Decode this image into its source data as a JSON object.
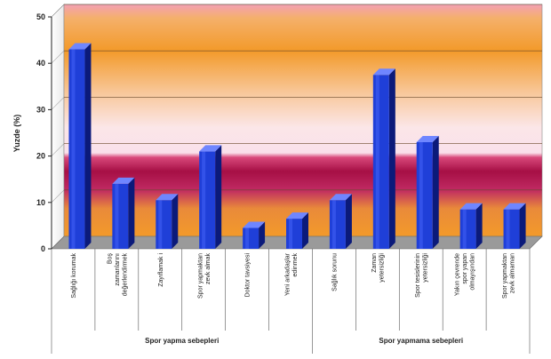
{
  "chart_data": {
    "type": "bar",
    "ylabel": "Yuzde (%)",
    "ylim": [
      0,
      50
    ],
    "yticks": [
      0,
      10,
      20,
      30,
      40,
      50
    ],
    "categories": [
      [
        "Sağlığı korumak"
      ],
      [
        "Boş",
        "zamanlarını",
        "değerlendirmek"
      ],
      [
        "Zayıflamak i"
      ],
      [
        "Spor yapmaktan",
        "zevk almak"
      ],
      [
        "Doktor tavsiyesi"
      ],
      [
        "Yeni arkadaşlar",
        "edinmek"
      ],
      [
        "Sağlık sorunu"
      ],
      [
        "Zaman",
        "yetersizliği"
      ],
      [
        "Spor tesislerinin",
        "yetersizliği"
      ],
      [
        "Yakın çevrende",
        "spor yapan",
        "olmayışından"
      ],
      [
        "Spor yapmaktan",
        "zevk almaman"
      ]
    ],
    "values": [
      43,
      14,
      10.5,
      21,
      4.5,
      6.5,
      10.5,
      37.5,
      23,
      8.5,
      8.5
    ],
    "groups": [
      {
        "label": "Spor yapma sebepleri",
        "from": 0,
        "to": 5
      },
      {
        "label": "Spor yapmama sebepleri",
        "from": 6,
        "to": 10
      }
    ],
    "colors": {
      "bar_front": "#1f3fd8",
      "bar_side": "#0b1a7a",
      "bar_top": "#6f86ff",
      "band_orange": "#f5a623",
      "band_pink": "#f6b8c8",
      "band_crimson": "#b0124a"
    }
  }
}
